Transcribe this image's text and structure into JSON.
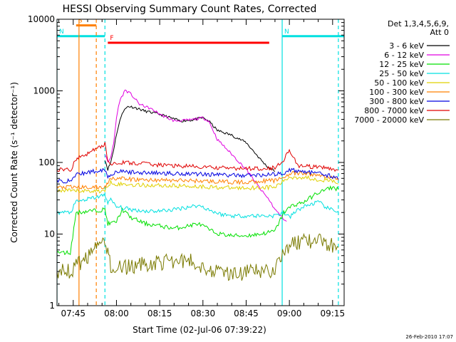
{
  "chart_data": {
    "type": "line",
    "title": "HESSI Observing Summary Count Rates, Corrected",
    "xlabel": "Start Time (02-Jul-06 07:39:22)",
    "ylabel": "Corrected Count Rate (s⁻¹ detector⁻¹)",
    "y_scale": "log",
    "ylim": [
      1,
      10000
    ],
    "xlim": [
      "07:39:22",
      "09:19:00"
    ],
    "x_ticks": [
      "07:45",
      "08:00",
      "08:15",
      "08:30",
      "08:45",
      "09:00",
      "09:15"
    ],
    "y_ticks": [
      "1",
      "10",
      "100",
      "1000",
      "10000"
    ],
    "legend": {
      "title_lines": [
        "Det 1,3,4,5,6,9,",
        "Att 0"
      ],
      "placement": "right"
    },
    "footer": "26-Feb-2010 17:07",
    "flags": [
      {
        "label": "S",
        "start": "07:46:00",
        "end": "07:53:00",
        "level": 8200,
        "color": "#ff8000"
      },
      {
        "label": "N",
        "start": "07:39:22",
        "end": "07:56:00",
        "level": 5800,
        "color": "#00e0e0"
      },
      {
        "label": "N",
        "start": "08:57:30",
        "end": "09:19:00",
        "level": 5800,
        "color": "#00e0e0"
      },
      {
        "label": "F",
        "start": "07:57:00",
        "end": "08:53:00",
        "level": 4700,
        "color": "#ff0000"
      }
    ],
    "vertical_markers": [
      {
        "time": "07:39:22",
        "color": "#00e0e0",
        "style": "solid"
      },
      {
        "time": "07:47:00",
        "color": "#ff8000",
        "style": "solid"
      },
      {
        "time": "07:53:00",
        "color": "#ff8000",
        "style": "dashed"
      },
      {
        "time": "07:56:00",
        "color": "#00e0e0",
        "style": "dashed"
      },
      {
        "time": "08:57:30",
        "color": "#00e0e0",
        "style": "solid"
      },
      {
        "time": "09:17:00",
        "color": "#00e0e0",
        "style": "dashed"
      }
    ],
    "series": [
      {
        "name": "3 - 6 keV",
        "color": "#000000",
        "x": [
          "07:56:00",
          "07:57:00",
          "07:58:00",
          "07:59:00",
          "08:00:00",
          "08:02:00",
          "08:04:00",
          "08:06:00",
          "08:10:00",
          "08:15:00",
          "08:18:00",
          "08:22:00",
          "08:26:00",
          "08:30:00",
          "08:32:00",
          "08:35:00",
          "08:40:00",
          "08:45:00",
          "08:50:00",
          "08:52:00",
          "08:55:00"
        ],
        "y": [
          110,
          80,
          100,
          150,
          250,
          500,
          610,
          590,
          520,
          470,
          430,
          380,
          390,
          420,
          380,
          280,
          240,
          190,
          110,
          90,
          75
        ]
      },
      {
        "name": "6 - 12 keV",
        "color": "#e000e0",
        "x": [
          "07:56:00",
          "07:57:00",
          "07:58:00",
          "07:59:00",
          "08:00:00",
          "08:01:00",
          "08:03:00",
          "08:05:00",
          "08:08:00",
          "08:12:00",
          "08:16:00",
          "08:20:00",
          "08:25:00",
          "08:30:00",
          "08:32:00",
          "08:35:00",
          "08:40:00",
          "08:45:00",
          "08:48:00",
          "08:50:00",
          "08:53:00",
          "08:55:00",
          "08:57:00",
          "08:59:00"
        ],
        "y": [
          130,
          100,
          120,
          180,
          420,
          700,
          1030,
          900,
          650,
          560,
          450,
          380,
          390,
          420,
          380,
          210,
          130,
          80,
          55,
          42,
          30,
          22,
          18,
          15
        ]
      },
      {
        "name": "12 - 25 keV",
        "color": "#00e000",
        "x": [
          "07:39:22",
          "07:44:00",
          "07:46:00",
          "07:56:00",
          "07:57:00",
          "07:58:00",
          "08:00:00",
          "08:02:00",
          "08:05:00",
          "08:10:00",
          "08:15:00",
          "08:20:00",
          "08:25:00",
          "08:28:00",
          "08:30:00",
          "08:33:00",
          "08:36:00",
          "08:40:00",
          "08:45:00",
          "08:50:00",
          "08:55:00",
          "08:58:00",
          "09:01:00",
          "09:05:00",
          "09:10:00",
          "09:15:00",
          "09:17:00"
        ],
        "y": [
          5.5,
          5.5,
          20,
          22,
          14,
          14,
          15,
          22,
          17,
          14,
          13,
          12,
          13,
          14,
          13,
          11,
          10,
          9.5,
          9.5,
          10,
          11,
          20,
          25,
          28,
          38,
          45,
          42
        ]
      },
      {
        "name": "25 - 50 keV",
        "color": "#00e0e0",
        "x": [
          "07:39:22",
          "07:44:00",
          "07:46:00",
          "07:56:00",
          "07:57:00",
          "07:58:00",
          "08:00:00",
          "08:05:00",
          "08:10:00",
          "08:15:00",
          "08:20:00",
          "08:25:00",
          "08:28:00",
          "08:30:00",
          "08:33:00",
          "08:36:00",
          "08:40:00",
          "08:45:00",
          "08:50:00",
          "08:55:00",
          "08:58:00",
          "09:00:00",
          "09:03:00",
          "09:06:00",
          "09:10:00",
          "09:14:00",
          "09:17:00"
        ],
        "y": [
          20,
          20,
          28,
          35,
          28,
          30,
          24,
          22,
          21,
          21,
          22,
          24,
          25,
          24,
          21,
          19,
          18,
          18,
          18,
          18,
          20,
          17,
          22,
          25,
          28,
          22,
          21
        ]
      },
      {
        "name": "50 - 100 keV",
        "color": "#e0d000",
        "x": [
          "07:39:22",
          "07:56:00",
          "07:57:00",
          "07:58:00",
          "08:00:00",
          "08:05:00",
          "08:10:00",
          "08:15:00",
          "08:20:00",
          "08:25:00",
          "08:30:00",
          "08:35:00",
          "08:40:00",
          "08:45:00",
          "08:50:00",
          "08:55:00",
          "08:58:00",
          "09:00:00",
          "09:05:00",
          "09:10:00",
          "09:15:00",
          "09:17:00"
        ],
        "y": [
          40,
          40,
          46,
          54,
          50,
          49,
          48,
          48,
          47,
          47,
          46,
          45,
          44,
          44,
          45,
          45,
          55,
          62,
          62,
          58,
          55,
          50
        ]
      },
      {
        "name": "100 - 300 keV",
        "color": "#ff8000",
        "x": [
          "07:39:22",
          "07:56:00",
          "07:57:00",
          "07:58:00",
          "08:00:00",
          "08:05:00",
          "08:10:00",
          "08:15:00",
          "08:20:00",
          "08:25:00",
          "08:30:00",
          "08:35:00",
          "08:40:00",
          "08:45:00",
          "08:50:00",
          "08:55:00",
          "08:58:00",
          "09:00:00",
          "09:05:00",
          "09:10:00",
          "09:15:00",
          "09:17:00"
        ],
        "y": [
          45,
          45,
          52,
          62,
          60,
          58,
          57,
          57,
          56,
          56,
          55,
          54,
          53,
          53,
          55,
          56,
          62,
          70,
          70,
          66,
          62,
          56
        ]
      },
      {
        "name": "300 - 800 keV",
        "color": "#0000e0",
        "x": [
          "07:39:22",
          "07:44:00",
          "07:46:00",
          "07:56:00",
          "07:57:00",
          "07:58:00",
          "08:00:00",
          "08:05:00",
          "08:10:00",
          "08:15:00",
          "08:20:00",
          "08:25:00",
          "08:30:00",
          "08:35:00",
          "08:40:00",
          "08:45:00",
          "08:50:00",
          "08:55:00",
          "08:58:00",
          "09:00:00",
          "09:05:00",
          "09:10:00",
          "09:15:00",
          "09:17:00"
        ],
        "y": [
          55,
          55,
          68,
          80,
          62,
          68,
          75,
          73,
          72,
          71,
          70,
          70,
          69,
          68,
          66,
          66,
          67,
          68,
          72,
          78,
          75,
          70,
          64,
          58
        ]
      },
      {
        "name": "800 - 7000 keV",
        "color": "#e00000",
        "x": [
          "07:39:22",
          "07:44:00",
          "07:46:00",
          "07:56:00",
          "07:57:00",
          "07:58:00",
          "08:00:00",
          "08:05:00",
          "08:10:00",
          "08:15:00",
          "08:20:00",
          "08:25:00",
          "08:30:00",
          "08:35:00",
          "08:40:00",
          "08:45:00",
          "08:50:00",
          "08:55:00",
          "08:58:00",
          "09:00:00",
          "09:03:00",
          "09:05:00",
          "09:10:00",
          "09:15:00",
          "09:17:00"
        ],
        "y": [
          80,
          78,
          110,
          180,
          110,
          95,
          100,
          98,
          96,
          92,
          90,
          88,
          86,
          84,
          83,
          82,
          83,
          84,
          110,
          150,
          90,
          88,
          85,
          82,
          78
        ]
      },
      {
        "name": "7000 - 20000 keV",
        "color": "#7a7a00",
        "x": [
          "07:39:22",
          "07:44:00",
          "07:46:00",
          "07:56:00",
          "07:57:00",
          "07:58:00",
          "08:00:00",
          "08:05:00",
          "08:10:00",
          "08:15:00",
          "08:20:00",
          "08:25:00",
          "08:30:00",
          "08:35:00",
          "08:40:00",
          "08:45:00",
          "08:50:00",
          "08:55:00",
          "08:58:00",
          "09:00:00",
          "09:05:00",
          "09:10:00",
          "09:15:00",
          "09:17:00"
        ],
        "y": [
          3,
          3,
          3.5,
          8,
          6,
          3.5,
          3.3,
          3.5,
          3.8,
          4,
          4.2,
          4.3,
          3.5,
          3,
          2.8,
          2.9,
          3,
          3.2,
          6,
          7,
          8,
          8,
          7,
          6.5
        ]
      }
    ]
  }
}
